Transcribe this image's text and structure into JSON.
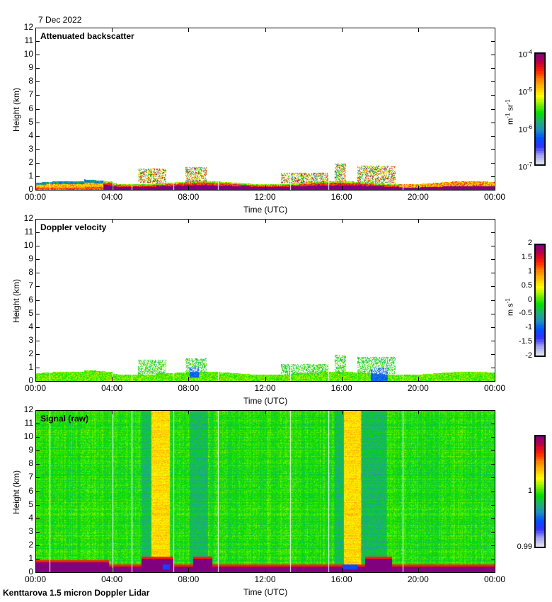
{
  "header": {
    "date": "7 Dec 2022"
  },
  "footer": {
    "instrument": "Kenttarova 1.5 micron Doppler Lidar"
  },
  "colors": {
    "colormap": [
      "#e0e0f0",
      "#a0a0f0",
      "#3030ff",
      "#0050ff",
      "#1e90c0",
      "#20b070",
      "#00e000",
      "#80f000",
      "#ffff00",
      "#ffc000",
      "#ff8000",
      "#ff2000",
      "#c00040",
      "#800080"
    ],
    "background": "#ffffff",
    "axis": "#000000"
  },
  "chart_data": [
    {
      "type": "heatmap",
      "title": "Attenuated backscatter",
      "xlabel": "Time (UTC)",
      "ylabel": "Height (km)",
      "xlim": [
        0,
        24
      ],
      "ylim": [
        0,
        12
      ],
      "x_ticks": [
        "00:00",
        "04:00",
        "08:00",
        "12:00",
        "16:00",
        "20:00",
        "00:00"
      ],
      "y_ticks": [
        "0",
        "1",
        "2",
        "3",
        "4",
        "5",
        "6",
        "7",
        "8",
        "9",
        "10",
        "11",
        "12"
      ],
      "colorbar": {
        "scale": "log",
        "range": [
          1e-07,
          0.0001
        ],
        "ticks": [
          {
            "base": "10",
            "exp": "-7"
          },
          {
            "base": "10",
            "exp": "-6"
          },
          {
            "base": "10",
            "exp": "-5"
          },
          {
            "base": "10",
            "exp": "-4"
          }
        ],
        "unit_base": [
          "m",
          "sr"
        ],
        "unit_exp": [
          "-1",
          "-1"
        ]
      },
      "features": [
        {
          "desc": "boundary layer aerosol",
          "t_start": 0,
          "t_end": 24,
          "height_top_km": 0.7
        },
        {
          "desc": "cloud patches",
          "t_start": 5.3,
          "t_end": 6.8,
          "height_top_km": 1.6
        },
        {
          "desc": "cloud patches",
          "t_start": 7.8,
          "t_end": 8.9,
          "height_top_km": 1.7
        },
        {
          "desc": "cloud patches",
          "t_start": 12.8,
          "t_end": 15.3,
          "height_top_km": 1.3
        },
        {
          "desc": "cloud patches",
          "t_start": 15.6,
          "t_end": 16.2,
          "height_top_km": 2.0
        },
        {
          "desc": "cloud patches",
          "t_start": 16.8,
          "t_end": 18.8,
          "height_top_km": 1.8
        }
      ]
    },
    {
      "type": "heatmap",
      "title": "Doppler velocity",
      "xlabel": "Time (UTC)",
      "ylabel": "Height (km)",
      "xlim": [
        0,
        24
      ],
      "ylim": [
        0,
        12
      ],
      "x_ticks": [
        "00:00",
        "04:00",
        "08:00",
        "12:00",
        "16:00",
        "20:00",
        "00:00"
      ],
      "y_ticks": [
        "0",
        "1",
        "2",
        "3",
        "4",
        "5",
        "6",
        "7",
        "8",
        "9",
        "10",
        "11",
        "12"
      ],
      "colorbar": {
        "scale": "linear",
        "range": [
          -2,
          2
        ],
        "ticks": [
          "-2",
          "-1.5",
          "-1",
          "-0.5",
          "0",
          "0.5",
          "1",
          "1.5",
          "2"
        ],
        "unit_base": [
          "m",
          "s"
        ],
        "unit_exp": [
          "",
          "-1"
        ]
      }
    },
    {
      "type": "heatmap",
      "title": "Signal (raw)",
      "xlabel": "Time (UTC)",
      "ylabel": "Height (km)",
      "xlim": [
        0,
        24
      ],
      "ylim": [
        0,
        12
      ],
      "x_ticks": [
        "00:00",
        "04:00",
        "08:00",
        "12:00",
        "16:00",
        "20:00",
        "00:00"
      ],
      "y_ticks": [
        "0",
        "1",
        "2",
        "3",
        "4",
        "5",
        "6",
        "7",
        "8",
        "9",
        "10",
        "11",
        "12"
      ],
      "colorbar": {
        "scale": "linear",
        "range": [
          0.99,
          1.01
        ],
        "ticks": [
          "0.99",
          "1"
        ]
      },
      "features": [
        {
          "desc": "elevated signal band",
          "t_start": 6.0,
          "t_end": 7.0
        },
        {
          "desc": "elevated signal band",
          "t_start": 16.0,
          "t_end": 17.0
        }
      ]
    }
  ]
}
